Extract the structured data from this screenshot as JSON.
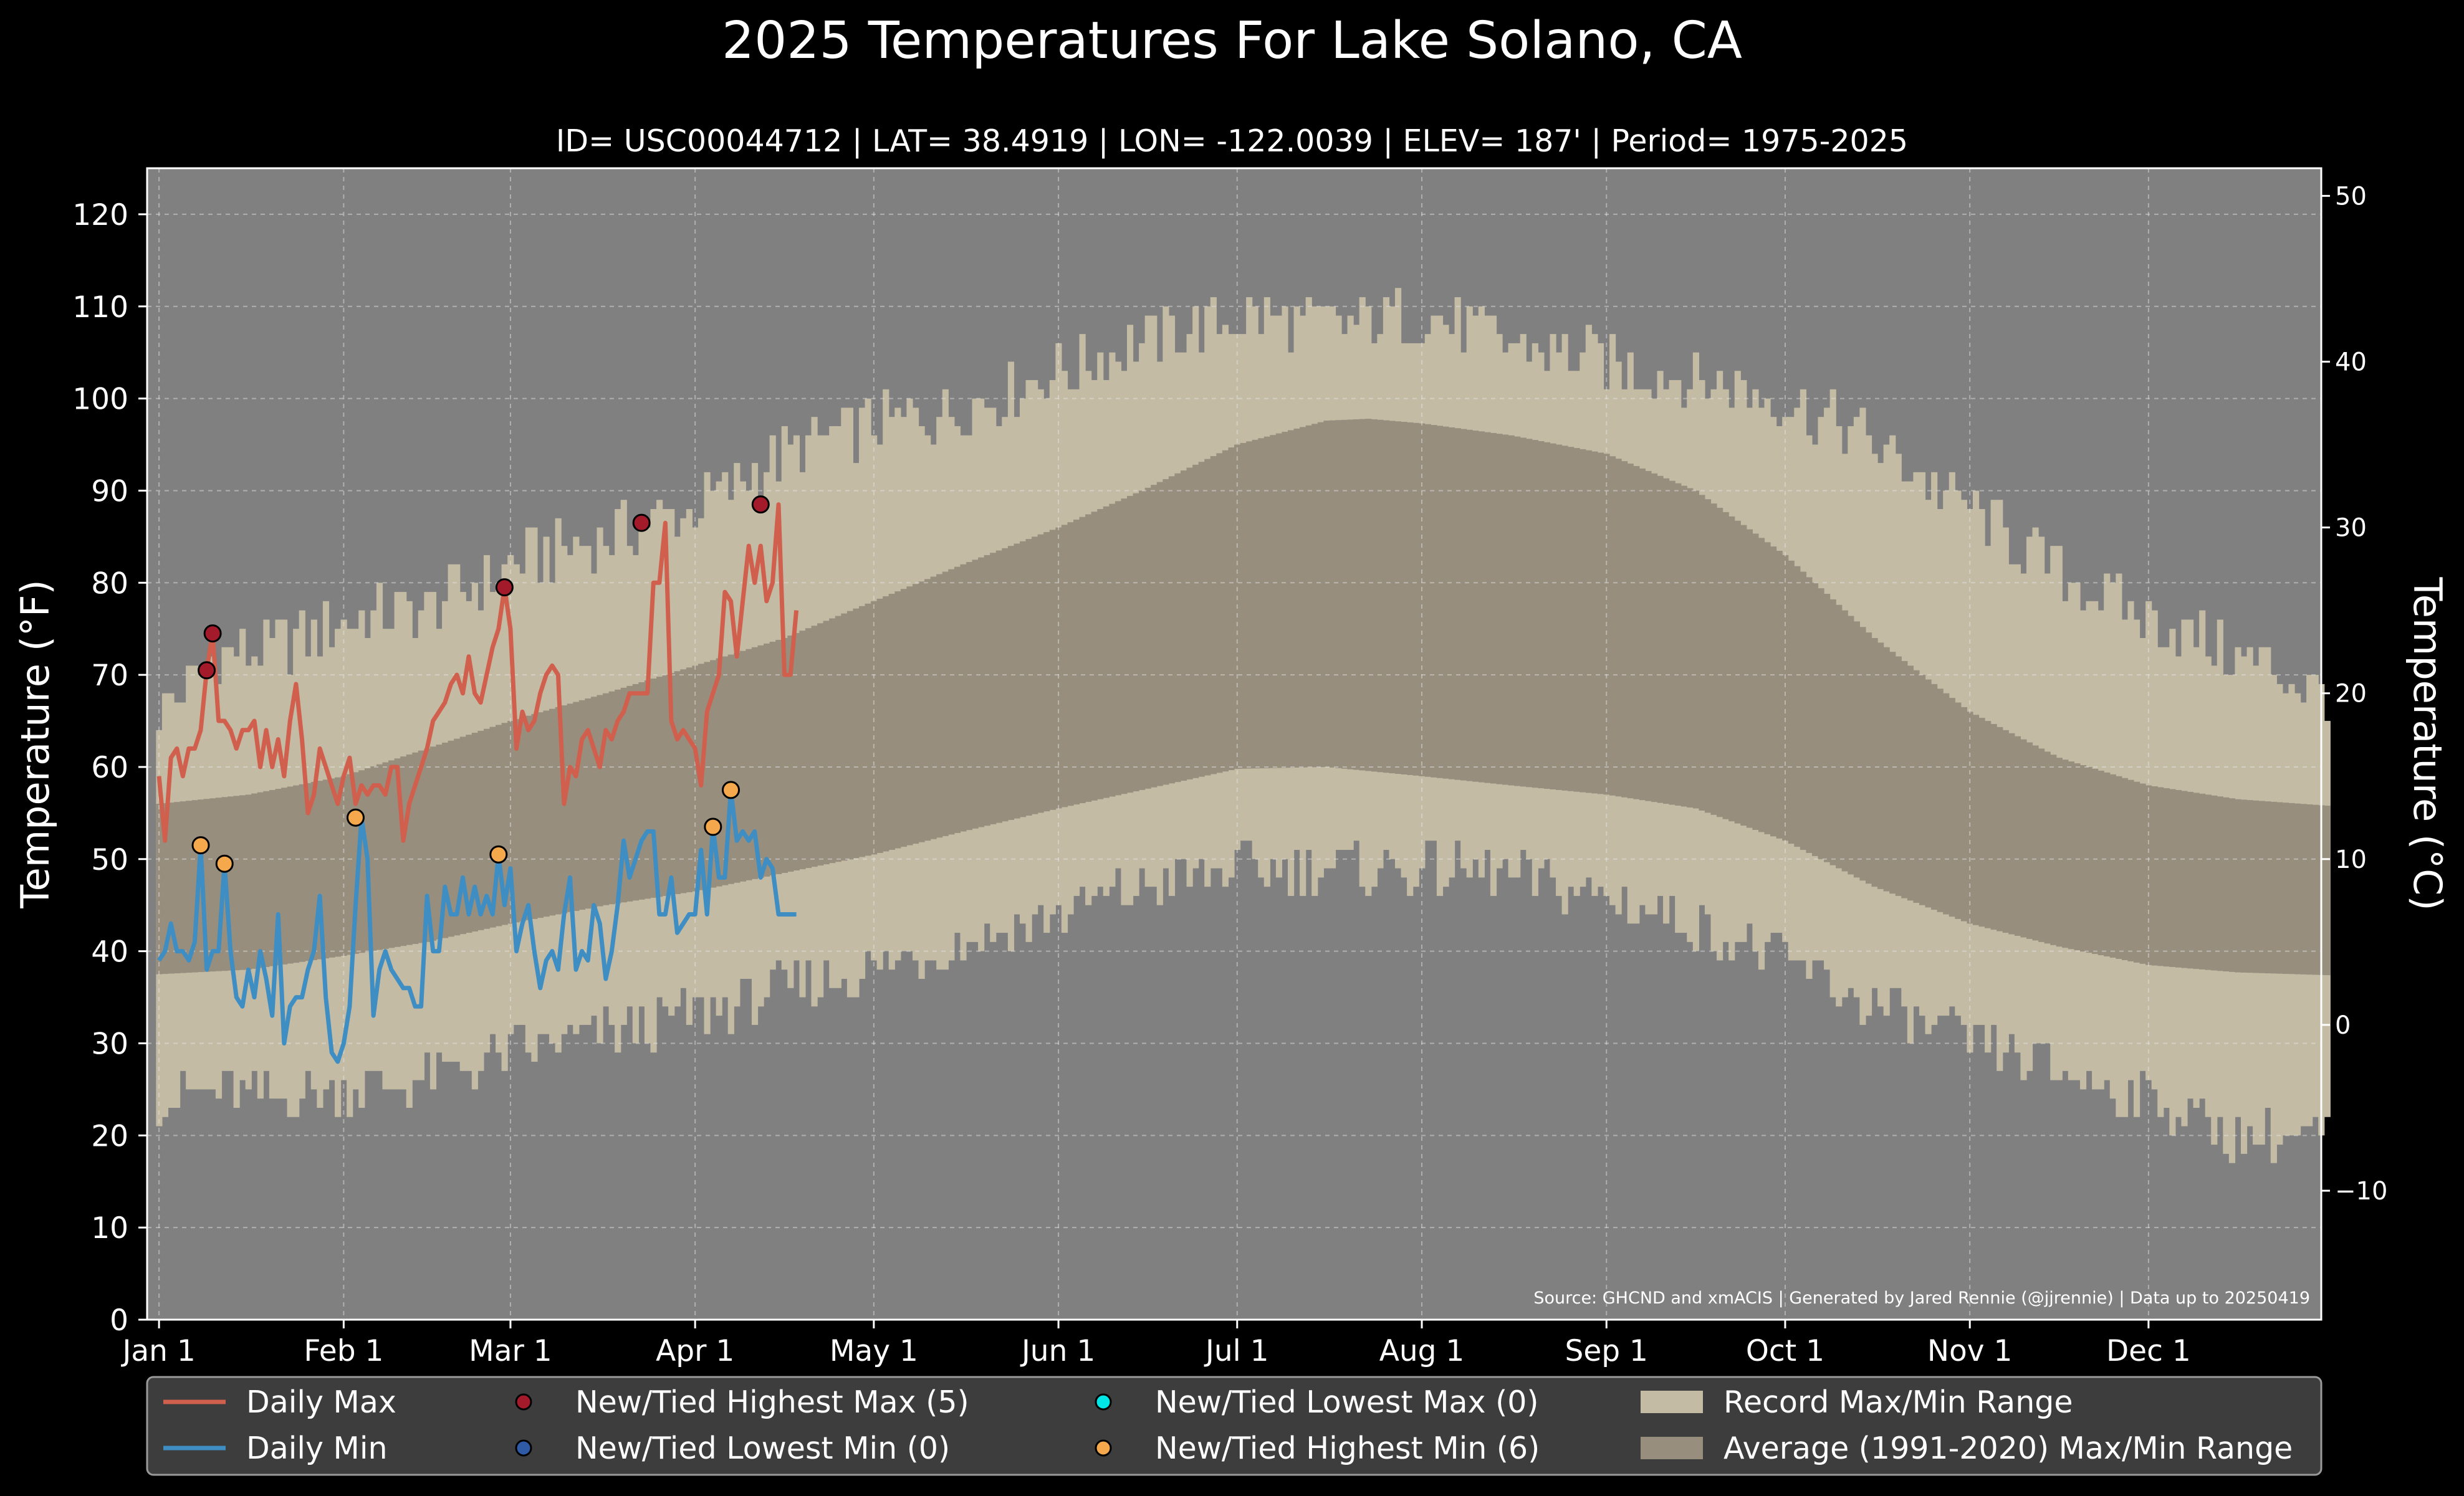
{
  "chart_data": {
    "type": "area",
    "title": "2025 Temperatures For Lake Solano, CA",
    "subtitle": "ID= USC00044712 | LAT= 38.4919 | LON= -122.0039 | ELEV= 187' | Period= 1975-2025",
    "ylabel_left": "Temperature ($^\\circ$F)",
    "ylabel_right": "Temperature ($^\\circ$C)",
    "ylabel_left_text": "Temperature (°F)",
    "ylabel_right_text": "Temperature (°C)",
    "ylim_f": [
      0,
      125
    ],
    "yticks_f": [
      0,
      10,
      20,
      30,
      40,
      50,
      60,
      70,
      80,
      90,
      100,
      110,
      120
    ],
    "yticks_c": [
      -10,
      0,
      10,
      20,
      30,
      40,
      50
    ],
    "xlim_day": [
      -2,
      363
    ],
    "x_ticks": [
      {
        "day": 0,
        "label": "Jan 1"
      },
      {
        "day": 31,
        "label": "Feb 1"
      },
      {
        "day": 59,
        "label": "Mar 1"
      },
      {
        "day": 90,
        "label": "Apr 1"
      },
      {
        "day": 120,
        "label": "May 1"
      },
      {
        "day": 151,
        "label": "Jun 1"
      },
      {
        "day": 181,
        "label": "Jul 1"
      },
      {
        "day": 212,
        "label": "Aug 1"
      },
      {
        "day": 243,
        "label": "Sep 1"
      },
      {
        "day": 273,
        "label": "Oct 1"
      },
      {
        "day": 304,
        "label": "Nov 1"
      },
      {
        "day": 334,
        "label": "Dec 1"
      }
    ],
    "grid": true,
    "record_max_knots": [
      [
        0,
        66
      ],
      [
        10,
        72
      ],
      [
        20,
        73
      ],
      [
        31,
        76
      ],
      [
        45,
        77
      ],
      [
        59,
        82
      ],
      [
        75,
        85
      ],
      [
        90,
        88
      ],
      [
        105,
        94
      ],
      [
        120,
        97
      ],
      [
        135,
        99
      ],
      [
        151,
        103
      ],
      [
        165,
        106
      ],
      [
        181,
        109
      ],
      [
        196,
        108
      ],
      [
        212,
        109
      ],
      [
        227,
        106
      ],
      [
        243,
        104
      ],
      [
        258,
        102
      ],
      [
        273,
        100
      ],
      [
        288,
        95
      ],
      [
        304,
        88
      ],
      [
        319,
        81
      ],
      [
        334,
        76
      ],
      [
        349,
        72
      ],
      [
        364,
        68
      ]
    ],
    "record_min_knots": [
      [
        0,
        24
      ],
      [
        10,
        25
      ],
      [
        20,
        24
      ],
      [
        31,
        25
      ],
      [
        45,
        26
      ],
      [
        59,
        29
      ],
      [
        75,
        31
      ],
      [
        90,
        33
      ],
      [
        105,
        36
      ],
      [
        120,
        38
      ],
      [
        135,
        41
      ],
      [
        151,
        44
      ],
      [
        165,
        47
      ],
      [
        181,
        49
      ],
      [
        196,
        49
      ],
      [
        212,
        49
      ],
      [
        227,
        48
      ],
      [
        243,
        46
      ],
      [
        258,
        43
      ],
      [
        273,
        39
      ],
      [
        288,
        34
      ],
      [
        304,
        30
      ],
      [
        319,
        27
      ],
      [
        334,
        24
      ],
      [
        349,
        20
      ],
      [
        364,
        20
      ]
    ],
    "avg_max_knots": [
      [
        0,
        56
      ],
      [
        15,
        57
      ],
      [
        31,
        59
      ],
      [
        45,
        62
      ],
      [
        59,
        65
      ],
      [
        75,
        68
      ],
      [
        90,
        71
      ],
      [
        105,
        74
      ],
      [
        120,
        78
      ],
      [
        135,
        82
      ],
      [
        151,
        86
      ],
      [
        165,
        90
      ],
      [
        181,
        95
      ],
      [
        196,
        97.6
      ],
      [
        203,
        97.8
      ],
      [
        212,
        97.3
      ],
      [
        227,
        96
      ],
      [
        243,
        94
      ],
      [
        258,
        90
      ],
      [
        273,
        83
      ],
      [
        288,
        74
      ],
      [
        304,
        66
      ],
      [
        319,
        61
      ],
      [
        334,
        58
      ],
      [
        349,
        56.5
      ],
      [
        364,
        55.8
      ]
    ],
    "avg_min_knots": [
      [
        0,
        37.5
      ],
      [
        15,
        38
      ],
      [
        31,
        39.5
      ],
      [
        45,
        41
      ],
      [
        59,
        43
      ],
      [
        75,
        45
      ],
      [
        90,
        46.5
      ],
      [
        105,
        48.5
      ],
      [
        120,
        50.5
      ],
      [
        135,
        53
      ],
      [
        151,
        55.5
      ],
      [
        165,
        57.5
      ],
      [
        181,
        59.8
      ],
      [
        196,
        60
      ],
      [
        212,
        59
      ],
      [
        227,
        58
      ],
      [
        243,
        57
      ],
      [
        258,
        55.5
      ],
      [
        273,
        52
      ],
      [
        288,
        47
      ],
      [
        304,
        43
      ],
      [
        319,
        40.5
      ],
      [
        334,
        38.5
      ],
      [
        349,
        37.7
      ],
      [
        364,
        37.4
      ]
    ],
    "series": [
      {
        "name": "Daily Max",
        "color": "#d0604d",
        "x": [
          0,
          1,
          2,
          3,
          4,
          5,
          6,
          7,
          8,
          9,
          10,
          11,
          12,
          13,
          14,
          15,
          16,
          17,
          18,
          19,
          20,
          21,
          22,
          23,
          24,
          25,
          26,
          27,
          28,
          29,
          30,
          31,
          32,
          33,
          34,
          35,
          36,
          37,
          38,
          39,
          40,
          41,
          42,
          43,
          44,
          45,
          46,
          47,
          48,
          49,
          50,
          51,
          52,
          53,
          54,
          55,
          56,
          57,
          58,
          59,
          60,
          61,
          62,
          63,
          64,
          65,
          66,
          67,
          68,
          69,
          70,
          71,
          72,
          73,
          74,
          75,
          76,
          77,
          78,
          79,
          80,
          81,
          82,
          83,
          84,
          85,
          86,
          87,
          88,
          89,
          90,
          91,
          92,
          93,
          94,
          95,
          96,
          97,
          98,
          99,
          100,
          101,
          102,
          103,
          104,
          105,
          106,
          107
        ],
        "values": [
          59,
          52,
          61,
          62,
          59,
          62,
          62,
          64,
          70.5,
          74.5,
          65,
          65,
          64,
          62,
          64,
          64,
          65,
          60,
          64,
          60,
          63,
          59,
          65,
          69,
          63,
          55,
          57,
          62,
          60,
          58,
          56,
          59,
          61,
          56,
          58,
          57,
          58,
          58,
          57,
          60,
          60,
          52,
          56,
          58,
          60,
          62,
          65,
          66,
          67,
          69,
          70,
          68,
          72,
          68,
          67,
          70,
          73,
          75,
          79.5,
          75,
          62,
          66,
          64,
          65,
          68,
          70,
          71,
          70,
          56,
          60,
          59,
          63,
          64,
          62,
          60,
          64,
          63,
          65,
          66,
          68,
          68,
          68,
          68,
          80,
          80,
          86.5,
          65,
          63,
          64,
          63,
          62,
          58,
          66,
          68,
          70,
          79,
          78,
          72,
          78,
          84,
          80,
          84,
          78,
          80,
          88.5,
          70,
          70,
          77
        ]
      },
      {
        "name": "Daily Min",
        "color": "#3e8ec4",
        "x": [
          0,
          1,
          2,
          3,
          4,
          5,
          6,
          7,
          8,
          9,
          10,
          11,
          12,
          13,
          14,
          15,
          16,
          17,
          18,
          19,
          20,
          21,
          22,
          23,
          24,
          25,
          26,
          27,
          28,
          29,
          30,
          31,
          32,
          33,
          34,
          35,
          36,
          37,
          38,
          39,
          40,
          41,
          42,
          43,
          44,
          45,
          46,
          47,
          48,
          49,
          50,
          51,
          52,
          53,
          54,
          55,
          56,
          57,
          58,
          59,
          60,
          61,
          62,
          63,
          64,
          65,
          66,
          67,
          68,
          69,
          70,
          71,
          72,
          73,
          74,
          75,
          76,
          77,
          78,
          79,
          80,
          81,
          82,
          83,
          84,
          85,
          86,
          87,
          88,
          89,
          90,
          91,
          92,
          93,
          94,
          95,
          96,
          97,
          98,
          99,
          100,
          101,
          102,
          103,
          104,
          105,
          106,
          107
        ],
        "values": [
          39,
          40,
          43,
          40,
          40,
          39,
          41,
          51.5,
          38,
          40,
          40,
          49.5,
          40,
          35,
          34,
          38,
          35,
          40,
          37,
          33,
          44,
          30,
          34,
          35,
          35,
          38,
          40,
          46,
          35,
          29,
          28,
          30,
          34,
          45,
          54.5,
          50,
          33,
          38,
          40,
          38,
          37,
          36,
          36,
          34,
          34,
          46,
          40,
          40,
          47,
          44,
          44,
          48,
          44,
          47,
          44,
          46,
          44,
          50.5,
          45,
          49,
          40,
          43,
          45,
          40,
          36,
          39,
          40,
          38,
          44,
          48,
          38,
          40,
          39,
          45,
          43,
          37,
          40,
          45,
          52,
          48,
          50,
          52,
          53,
          53,
          44,
          44,
          48,
          42,
          43,
          44,
          44,
          51,
          44,
          53.5,
          48,
          48,
          57.5,
          52,
          53,
          52,
          53,
          48,
          50,
          49,
          44,
          44,
          44,
          44
        ]
      },
      {
        "name": "New/Tied Highest Max (5)",
        "color": "#a31a2b",
        "type": "scatter",
        "points": [
          [
            8,
            70.5
          ],
          [
            9,
            74.5
          ],
          [
            58,
            79.5
          ],
          [
            81,
            86.5
          ],
          [
            101,
            88.5
          ]
        ]
      },
      {
        "name": "New/Tied Lowest Min (0)",
        "color": "#2f5aa6",
        "type": "scatter",
        "points": []
      },
      {
        "name": "New/Tied Lowest Max (0)",
        "color": "#00e5e5",
        "type": "scatter",
        "points": []
      },
      {
        "name": "New/Tied Highest Min (6)",
        "color": "#f5a84c",
        "type": "scatter",
        "points": [
          [
            7,
            51.5
          ],
          [
            11,
            49.5
          ],
          [
            33,
            54.5
          ],
          [
            57,
            50.5
          ],
          [
            93,
            53.5
          ],
          [
            96,
            57.5
          ]
        ]
      },
      {
        "name": "Record Max/Min Range",
        "color": "#c4bba5",
        "type": "area"
      },
      {
        "name": "Average (1991-2020) Max/Min Range",
        "color": "#978e7e",
        "type": "area"
      }
    ],
    "legend": {
      "placement": "bottom",
      "entries": [
        {
          "label": "Daily Max",
          "kind": "line",
          "color": "#d0604d"
        },
        {
          "label": "New/Tied Highest Max (5)",
          "kind": "dot",
          "color": "#a31a2b"
        },
        {
          "label": "New/Tied Lowest Max (0)",
          "kind": "dot",
          "color": "#00e5e5"
        },
        {
          "label": "Record Max/Min Range",
          "kind": "patch",
          "color": "#c4bba5"
        },
        {
          "label": "Daily Min",
          "kind": "line",
          "color": "#3e8ec4"
        },
        {
          "label": "New/Tied Lowest Min (0)",
          "kind": "dot",
          "color": "#2f5aa6"
        },
        {
          "label": "New/Tied Highest Min (6)",
          "kind": "dot",
          "color": "#f5a84c"
        },
        {
          "label": "Average (1991-2020) Max/Min Range",
          "kind": "patch",
          "color": "#978e7e"
        }
      ]
    },
    "source_note": "Source: GHCND and xmACIS | Generated by Jared Rennie (@jjrennie) | Data up to 20250419",
    "colors": {
      "background": "#000000",
      "plot_bg": "#808080",
      "record": "#c4bba5",
      "average": "#978e7e"
    }
  }
}
